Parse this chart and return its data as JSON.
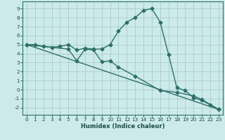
{
  "xlabel": "Humidex (Indice chaleur)",
  "background_color": "#cceaea",
  "grid_color": "#aacccc",
  "line_color": "#2d7068",
  "xlim": [
    -0.5,
    23.5
  ],
  "ylim": [
    -2.8,
    9.8
  ],
  "xticks": [
    0,
    1,
    2,
    3,
    4,
    5,
    6,
    7,
    8,
    9,
    10,
    11,
    12,
    13,
    14,
    15,
    16,
    17,
    18,
    19,
    20,
    21,
    22,
    23
  ],
  "yticks": [
    -2,
    -1,
    0,
    1,
    2,
    3,
    4,
    5,
    6,
    7,
    8,
    9
  ],
  "line1_x": [
    0,
    1,
    2,
    3,
    4,
    5,
    6,
    7,
    8,
    9,
    10,
    11,
    12,
    13,
    14,
    15,
    16,
    17,
    18,
    19,
    20,
    21,
    22,
    23
  ],
  "line1_y": [
    5.0,
    5.0,
    4.8,
    4.7,
    4.8,
    5.0,
    4.4,
    4.6,
    4.5,
    4.5,
    5.0,
    6.5,
    7.5,
    8.0,
    8.8,
    9.0,
    7.5,
    3.9,
    0.2,
    -0.1,
    -0.9,
    -1.2,
    -1.7,
    -2.2
  ],
  "line2_x": [
    0,
    5,
    6,
    7,
    8,
    9,
    10,
    11,
    13,
    16,
    18,
    20,
    21,
    23
  ],
  "line2_y": [
    5.0,
    4.5,
    3.2,
    4.5,
    4.4,
    3.1,
    3.2,
    2.5,
    1.5,
    -0.1,
    -0.3,
    -0.7,
    -1.1,
    -2.2
  ],
  "line3_x": [
    0,
    23
  ],
  "line3_y": [
    5.0,
    -2.2
  ],
  "marker": "D",
  "markersize": 2.5,
  "linewidth": 1.0,
  "xlabel_fontsize": 6.0,
  "tick_fontsize": 5.2
}
